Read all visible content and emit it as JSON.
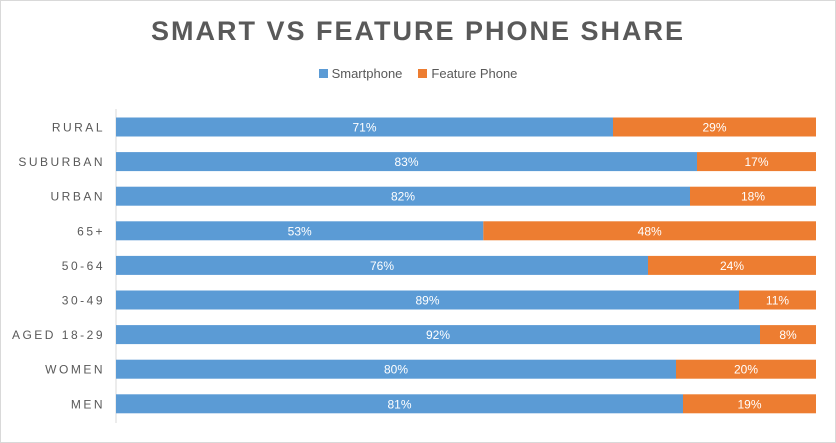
{
  "chart_data": {
    "type": "bar",
    "orientation": "horizontal",
    "stacked": true,
    "title": "SMART VS FEATURE PHONE SHARE",
    "legend_position": "top",
    "categories": [
      "MEN",
      "WOMEN",
      "AGED 18-29",
      "30-49",
      "50-64",
      "65+",
      "URBAN",
      "SUBURBAN",
      "RURAL"
    ],
    "series": [
      {
        "name": "Smartphone",
        "color": "#5b9bd5",
        "values": [
          81,
          80,
          92,
          89,
          76,
          53,
          82,
          83,
          71
        ],
        "labels": [
          "81%",
          "80%",
          "92%",
          "89%",
          "76%",
          "53%",
          "82%",
          "83%",
          "71%"
        ]
      },
      {
        "name": "Feature Phone",
        "color": "#ed7d31",
        "values": [
          19,
          20,
          8,
          11,
          24,
          48,
          18,
          17,
          29
        ],
        "labels": [
          "19%",
          "20%",
          "8%",
          "11%",
          "24%",
          "48%",
          "18%",
          "17%",
          "29%"
        ]
      }
    ],
    "grid": false
  }
}
